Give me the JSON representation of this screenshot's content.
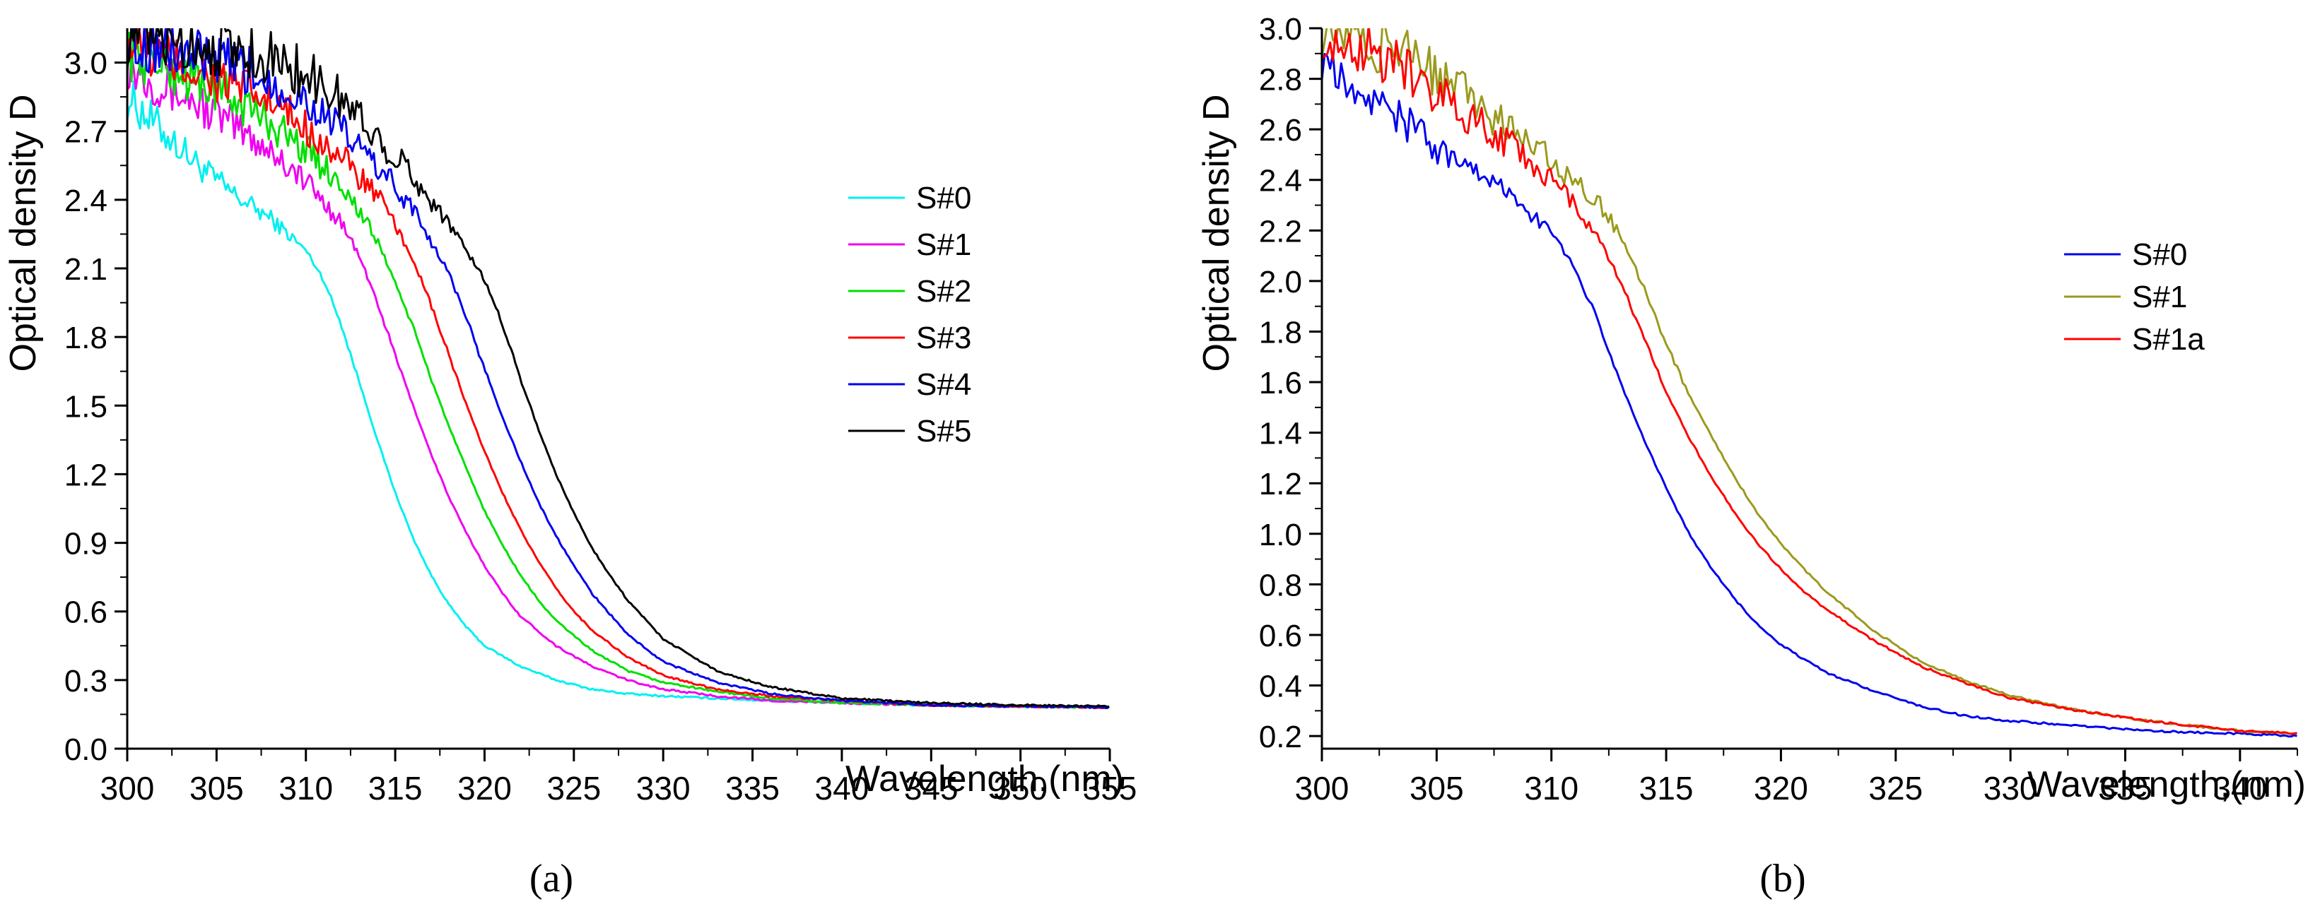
{
  "chart_data": [
    {
      "type": "line",
      "panel_label": "(a)",
      "xlabel": "Wavelength,(nm)",
      "ylabel": "Optical density D",
      "xlim": [
        300,
        355
      ],
      "ylim": [
        0.0,
        3.15
      ],
      "xticks": [
        "300",
        "305",
        "310",
        "315",
        "320",
        "325",
        "330",
        "335",
        "340",
        "345",
        "350",
        "355"
      ],
      "yticks": [
        "0.0",
        "0.3",
        "0.6",
        "0.9",
        "1.2",
        "1.5",
        "1.8",
        "2.1",
        "2.4",
        "2.7",
        "3.0"
      ],
      "legend_position": "right",
      "series": [
        {
          "name": "S#0",
          "color": "#00f0f0",
          "x": [
            300,
            302,
            304,
            306,
            308,
            310,
            311,
            312,
            313,
            314,
            315,
            316,
            317,
            318,
            319,
            320,
            322,
            324,
            326,
            328,
            330,
            333,
            336,
            340,
            345,
            350,
            355
          ],
          "values": [
            2.85,
            2.7,
            2.55,
            2.42,
            2.32,
            2.18,
            2.05,
            1.85,
            1.6,
            1.35,
            1.12,
            0.92,
            0.76,
            0.63,
            0.53,
            0.45,
            0.36,
            0.3,
            0.26,
            0.24,
            0.23,
            0.22,
            0.21,
            0.2,
            0.19,
            0.185,
            0.18
          ]
        },
        {
          "name": "S#1",
          "color": "#f000f0",
          "x": [
            300,
            302,
            304,
            306,
            308,
            310,
            312,
            313,
            314,
            315,
            316,
            317,
            318,
            319,
            320,
            321,
            322,
            324,
            326,
            328,
            330,
            333,
            336,
            340,
            345,
            350,
            355
          ],
          "values": [
            3.0,
            2.9,
            2.82,
            2.72,
            2.62,
            2.48,
            2.3,
            2.15,
            1.95,
            1.72,
            1.5,
            1.29,
            1.1,
            0.94,
            0.8,
            0.68,
            0.58,
            0.45,
            0.36,
            0.3,
            0.26,
            0.23,
            0.21,
            0.2,
            0.19,
            0.185,
            0.18
          ]
        },
        {
          "name": "S#2",
          "color": "#00e000",
          "x": [
            300,
            302,
            304,
            306,
            308,
            310,
            312,
            314,
            315,
            316,
            317,
            318,
            319,
            320,
            321,
            322,
            323,
            324,
            326,
            328,
            330,
            333,
            336,
            340,
            345,
            350,
            355
          ],
          "values": [
            3.05,
            2.98,
            2.92,
            2.84,
            2.74,
            2.62,
            2.47,
            2.22,
            2.04,
            1.84,
            1.62,
            1.41,
            1.22,
            1.04,
            0.89,
            0.76,
            0.65,
            0.56,
            0.43,
            0.34,
            0.29,
            0.25,
            0.22,
            0.2,
            0.19,
            0.185,
            0.18
          ]
        },
        {
          "name": "S#3",
          "color": "#ff0000",
          "x": [
            300,
            302,
            304,
            306,
            308,
            310,
            312,
            314,
            316,
            317,
            318,
            319,
            320,
            321,
            322,
            323,
            324,
            325,
            326,
            328,
            330,
            333,
            336,
            340,
            345,
            350,
            355
          ],
          "values": [
            3.08,
            3.02,
            2.96,
            2.9,
            2.82,
            2.72,
            2.58,
            2.42,
            2.14,
            1.94,
            1.72,
            1.5,
            1.3,
            1.12,
            0.96,
            0.82,
            0.7,
            0.6,
            0.52,
            0.4,
            0.32,
            0.26,
            0.23,
            0.21,
            0.19,
            0.185,
            0.18
          ]
        },
        {
          "name": "S#4",
          "color": "#0000f0",
          "x": [
            300,
            302,
            304,
            306,
            308,
            310,
            312,
            314,
            316,
            318,
            319,
            320,
            321,
            322,
            323,
            324,
            325,
            326,
            328,
            330,
            333,
            336,
            340,
            345,
            350,
            355
          ],
          "values": [
            3.1,
            3.06,
            3.02,
            2.98,
            2.92,
            2.84,
            2.7,
            2.55,
            2.36,
            2.08,
            1.88,
            1.66,
            1.45,
            1.26,
            1.08,
            0.93,
            0.8,
            0.68,
            0.5,
            0.38,
            0.29,
            0.24,
            0.21,
            0.19,
            0.185,
            0.18
          ]
        },
        {
          "name": "S#5",
          "color": "#000000",
          "x": [
            300,
            302,
            304,
            306,
            308,
            310,
            312,
            314,
            316,
            318,
            320,
            321,
            322,
            323,
            324,
            325,
            326,
            327,
            328,
            330,
            333,
            336,
            340,
            345,
            350,
            355
          ],
          "values": [
            3.12,
            3.1,
            3.08,
            3.06,
            3.02,
            2.95,
            2.84,
            2.68,
            2.5,
            2.3,
            2.05,
            1.86,
            1.62,
            1.4,
            1.2,
            1.03,
            0.88,
            0.76,
            0.65,
            0.48,
            0.34,
            0.27,
            0.22,
            0.2,
            0.19,
            0.185
          ]
        }
      ]
    },
    {
      "type": "line",
      "panel_label": "(b)",
      "xlabel": "Wavelength,(nm)",
      "ylabel": "Optical density D",
      "xlim": [
        300,
        342.5
      ],
      "ylim": [
        0.15,
        3.0
      ],
      "xticks": [
        "300",
        "305",
        "310",
        "315",
        "320",
        "325",
        "330",
        "335",
        "340"
      ],
      "yticks": [
        "0.2",
        "0.4",
        "0.6",
        "0.8",
        "1.0",
        "1.2",
        "1.4",
        "1.6",
        "1.8",
        "2.0",
        "2.2",
        "2.4",
        "2.6",
        "2.8",
        "3.0"
      ],
      "legend_position": "right",
      "series": [
        {
          "name": "S#0",
          "color": "#0000f0",
          "x": [
            300,
            302,
            304,
            306,
            308,
            310,
            311,
            312,
            313,
            314,
            315,
            316,
            317,
            318,
            319,
            320,
            322,
            324,
            326,
            328,
            330,
            333,
            336,
            340,
            342.5
          ],
          "values": [
            2.9,
            2.75,
            2.6,
            2.45,
            2.35,
            2.2,
            2.05,
            1.85,
            1.6,
            1.38,
            1.18,
            1.0,
            0.86,
            0.74,
            0.64,
            0.56,
            0.45,
            0.38,
            0.32,
            0.28,
            0.26,
            0.24,
            0.22,
            0.21,
            0.2
          ]
        },
        {
          "name": "S#1",
          "color": "#9a9a1e",
          "x": [
            300,
            302,
            304,
            306,
            308,
            310,
            311,
            312,
            313,
            314,
            315,
            316,
            317,
            318,
            319,
            320,
            321,
            322,
            324,
            326,
            328,
            330,
            333,
            336,
            340,
            342.5
          ],
          "values": [
            3.0,
            2.95,
            2.88,
            2.75,
            2.62,
            2.48,
            2.4,
            2.32,
            2.18,
            1.98,
            1.75,
            1.55,
            1.38,
            1.22,
            1.08,
            0.96,
            0.86,
            0.77,
            0.62,
            0.5,
            0.42,
            0.36,
            0.3,
            0.26,
            0.22,
            0.21
          ]
        },
        {
          "name": "S#1a",
          "color": "#ff0000",
          "x": [
            300,
            302,
            304,
            306,
            308,
            310,
            311,
            312,
            313,
            314,
            315,
            316,
            317,
            318,
            319,
            320,
            321,
            322,
            324,
            326,
            328,
            330,
            333,
            336,
            340,
            342.5
          ],
          "values": [
            3.0,
            2.92,
            2.82,
            2.68,
            2.55,
            2.4,
            2.3,
            2.18,
            2.0,
            1.78,
            1.56,
            1.38,
            1.22,
            1.08,
            0.96,
            0.86,
            0.77,
            0.7,
            0.58,
            0.48,
            0.41,
            0.35,
            0.3,
            0.26,
            0.22,
            0.21
          ]
        }
      ]
    }
  ]
}
